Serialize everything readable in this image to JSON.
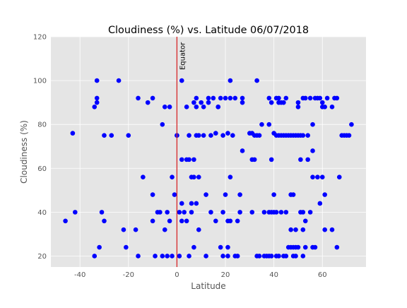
{
  "chart_data": {
    "type": "scatter",
    "title": "Cloudiness (%) vs. Latitude 06/07/2018",
    "xlabel": "Latitude",
    "ylabel": "Cloudiness (%)",
    "xlim": [
      -52,
      78
    ],
    "ylim": [
      15,
      120
    ],
    "xticks": [
      -40,
      -20,
      0,
      20,
      40,
      60
    ],
    "yticks": [
      20,
      40,
      60,
      80,
      100,
      120
    ],
    "grid": true,
    "style": "ggplot",
    "point_color": "#0000ff",
    "annotation": {
      "text": "Equator",
      "x": 0,
      "line_color": "#d62728"
    },
    "points": [
      [
        -46,
        36
      ],
      [
        -43,
        76
      ],
      [
        -42,
        40
      ],
      [
        -34,
        88
      ],
      [
        -34,
        20
      ],
      [
        -33,
        90
      ],
      [
        -33,
        92
      ],
      [
        -33,
        100
      ],
      [
        -32,
        24
      ],
      [
        -31,
        40
      ],
      [
        -30,
        75
      ],
      [
        -30,
        36
      ],
      [
        -27,
        75
      ],
      [
        -24,
        100
      ],
      [
        -22,
        32
      ],
      [
        -21,
        24
      ],
      [
        -20,
        75
      ],
      [
        -17,
        32
      ],
      [
        -16,
        92
      ],
      [
        -16,
        20
      ],
      [
        -14,
        56
      ],
      [
        -12,
        90
      ],
      [
        -10,
        48
      ],
      [
        -10,
        92
      ],
      [
        -10,
        36
      ],
      [
        -9,
        20
      ],
      [
        -8,
        40
      ],
      [
        -7,
        40
      ],
      [
        -6,
        20
      ],
      [
        -6,
        80
      ],
      [
        -5,
        32
      ],
      [
        -5,
        88
      ],
      [
        -4,
        20
      ],
      [
        -4,
        40
      ],
      [
        -3,
        36
      ],
      [
        -3,
        88
      ],
      [
        -2,
        20
      ],
      [
        -2,
        56
      ],
      [
        -1,
        48
      ],
      [
        0,
        75
      ],
      [
        0,
        75
      ],
      [
        1,
        20
      ],
      [
        1,
        40
      ],
      [
        2,
        44
      ],
      [
        2,
        64
      ],
      [
        2,
        100
      ],
      [
        2,
        36
      ],
      [
        3,
        40
      ],
      [
        4,
        88
      ],
      [
        4,
        64
      ],
      [
        4,
        36
      ],
      [
        5,
        20
      ],
      [
        5,
        75
      ],
      [
        5,
        64
      ],
      [
        6,
        40
      ],
      [
        6,
        44
      ],
      [
        6,
        56
      ],
      [
        7,
        90
      ],
      [
        7,
        64
      ],
      [
        7,
        56
      ],
      [
        7,
        24
      ],
      [
        8,
        92
      ],
      [
        8,
        88
      ],
      [
        8,
        75
      ],
      [
        8,
        44
      ],
      [
        9,
        75
      ],
      [
        9,
        56
      ],
      [
        9,
        32
      ],
      [
        10,
        90
      ],
      [
        11,
        88
      ],
      [
        11,
        75
      ],
      [
        12,
        48
      ],
      [
        12,
        20
      ],
      [
        13,
        92
      ],
      [
        13,
        90
      ],
      [
        14,
        75
      ],
      [
        14,
        40
      ],
      [
        15,
        92
      ],
      [
        16,
        76
      ],
      [
        16,
        36
      ],
      [
        17,
        88
      ],
      [
        17,
        88
      ],
      [
        18,
        92
      ],
      [
        18,
        24
      ],
      [
        19,
        75
      ],
      [
        19,
        40
      ],
      [
        19,
        20
      ],
      [
        20,
        92
      ],
      [
        20,
        48
      ],
      [
        21,
        76
      ],
      [
        21,
        36
      ],
      [
        21,
        24
      ],
      [
        21,
        20
      ],
      [
        22,
        100
      ],
      [
        22,
        92
      ],
      [
        22,
        56
      ],
      [
        22,
        36
      ],
      [
        23,
        75
      ],
      [
        24,
        92
      ],
      [
        24,
        20
      ],
      [
        25,
        20
      ],
      [
        25,
        36
      ],
      [
        26,
        48
      ],
      [
        26,
        40
      ],
      [
        27,
        92
      ],
      [
        27,
        90
      ],
      [
        27,
        68
      ],
      [
        30,
        76
      ],
      [
        31,
        76
      ],
      [
        31,
        64
      ],
      [
        31,
        40
      ],
      [
        32,
        75
      ],
      [
        32,
        64
      ],
      [
        33,
        100
      ],
      [
        33,
        75
      ],
      [
        33,
        20
      ],
      [
        34,
        75
      ],
      [
        34,
        20
      ],
      [
        35,
        80
      ],
      [
        36,
        40
      ],
      [
        36,
        20
      ],
      [
        37,
        20
      ],
      [
        38,
        92
      ],
      [
        38,
        80
      ],
      [
        38,
        40
      ],
      [
        38,
        20
      ],
      [
        39,
        90
      ],
      [
        39,
        64
      ],
      [
        39,
        40
      ],
      [
        39,
        20
      ],
      [
        40,
        76
      ],
      [
        40,
        48
      ],
      [
        40,
        40
      ],
      [
        41,
        92
      ],
      [
        41,
        75
      ],
      [
        41,
        40
      ],
      [
        41,
        20
      ],
      [
        42,
        92
      ],
      [
        42,
        75
      ],
      [
        42,
        90
      ],
      [
        42,
        20
      ],
      [
        43,
        75
      ],
      [
        43,
        90
      ],
      [
        43,
        40
      ],
      [
        44,
        90
      ],
      [
        44,
        75
      ],
      [
        44,
        20
      ],
      [
        45,
        92
      ],
      [
        45,
        75
      ],
      [
        45,
        40
      ],
      [
        45,
        20
      ],
      [
        46,
        75
      ],
      [
        46,
        24
      ],
      [
        47,
        75
      ],
      [
        47,
        48
      ],
      [
        47,
        32
      ],
      [
        47,
        24
      ],
      [
        48,
        75
      ],
      [
        48,
        48
      ],
      [
        48,
        24
      ],
      [
        48,
        20
      ],
      [
        49,
        75
      ],
      [
        49,
        32
      ],
      [
        49,
        24
      ],
      [
        49,
        20
      ],
      [
        50,
        90
      ],
      [
        50,
        88
      ],
      [
        50,
        75
      ],
      [
        50,
        24
      ],
      [
        51,
        75
      ],
      [
        51,
        64
      ],
      [
        51,
        40
      ],
      [
        52,
        92
      ],
      [
        52,
        75
      ],
      [
        52,
        40
      ],
      [
        52,
        32
      ],
      [
        52,
        20
      ],
      [
        53,
        92
      ],
      [
        53,
        36
      ],
      [
        53,
        24
      ],
      [
        54,
        75
      ],
      [
        54,
        64
      ],
      [
        55,
        92
      ],
      [
        55,
        40
      ],
      [
        56,
        80
      ],
      [
        56,
        68
      ],
      [
        56,
        56
      ],
      [
        56,
        24
      ],
      [
        57,
        92
      ],
      [
        57,
        24
      ],
      [
        58,
        92
      ],
      [
        58,
        56
      ],
      [
        59,
        92
      ],
      [
        59,
        44
      ],
      [
        60,
        90
      ],
      [
        60,
        88
      ],
      [
        60,
        56
      ],
      [
        61,
        88
      ],
      [
        61,
        48
      ],
      [
        61,
        32
      ],
      [
        62,
        92
      ],
      [
        64,
        88
      ],
      [
        64,
        32
      ],
      [
        65,
        92
      ],
      [
        66,
        92
      ],
      [
        66,
        24
      ],
      [
        67,
        56
      ],
      [
        68,
        75
      ],
      [
        69,
        75
      ],
      [
        70,
        75
      ],
      [
        71,
        75
      ],
      [
        72,
        80
      ]
    ]
  }
}
